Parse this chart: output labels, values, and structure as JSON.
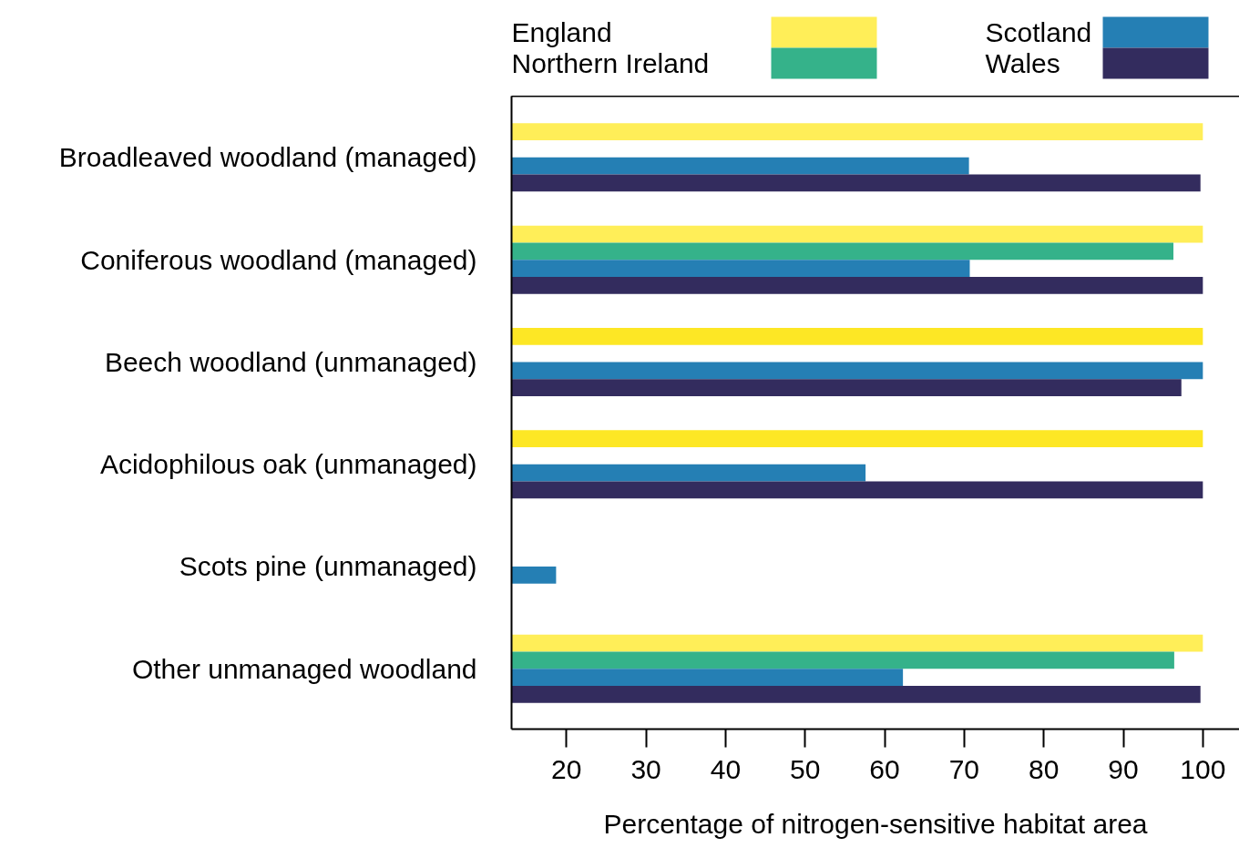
{
  "chart_data": {
    "type": "bar",
    "orientation": "horizontal",
    "categories": [
      "Broadleaved woodland (managed)",
      "Coniferous woodland (managed)",
      "Beech woodland (unmanaged)",
      "Acidophilous oak (unmanaged)",
      "Scots pine (unmanaged)",
      "Other unmanaged woodland"
    ],
    "series": [
      {
        "name": "England",
        "color": "#ffee58",
        "colors": [
          "#ffee58",
          "#ffee58",
          "#fde725",
          "#fde725",
          null,
          "#ffee58"
        ],
        "values": [
          100,
          100,
          100,
          100,
          null,
          100
        ]
      },
      {
        "name": "Northern Ireland",
        "color": "#35b28a",
        "values": [
          null,
          96.3,
          null,
          null,
          null,
          96.4
        ]
      },
      {
        "name": "Scotland",
        "color": "#257fb4",
        "values": [
          70.6,
          70.7,
          100,
          57.6,
          18.7,
          62.3
        ]
      },
      {
        "name": "Wales",
        "color": "#332c5e",
        "values": [
          99.7,
          100,
          97.3,
          100,
          null,
          99.7
        ]
      }
    ],
    "xlabel": "Percentage of nitrogen-sensitive habitat area",
    "xlim": [
      13.1,
      104.6
    ],
    "xticks": [
      20,
      30,
      40,
      50,
      60,
      70,
      80,
      90,
      100
    ],
    "grid": false,
    "legend": "top"
  }
}
